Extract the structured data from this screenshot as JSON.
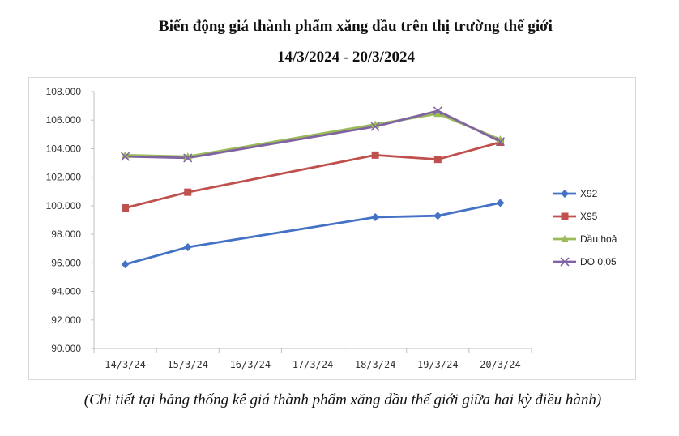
{
  "title_line1": "Biến động giá thành phẩm xăng dầu trên thị trường thế giới",
  "title_line2": "14/3/2024 - 20/3/2024",
  "caption": "(Chi tiết tại bảng thống kê giá thành phẩm xăng dầu thế giới giữa hai kỳ điều hành)",
  "chart_data": {
    "type": "line",
    "categories": [
      "14/3/24",
      "15/3/24",
      "16/3/24",
      "17/3/24",
      "18/3/24",
      "19/3/24",
      "20/3/24"
    ],
    "ylim": [
      90000,
      108000
    ],
    "yticks": [
      90000,
      92000,
      94000,
      96000,
      98000,
      100000,
      102000,
      104000,
      106000,
      108000
    ],
    "ytick_labels": [
      "90.000",
      "92.000",
      "94.000",
      "96.000",
      "98.000",
      "100.000",
      "102.000",
      "104.000",
      "106.000",
      "108.000"
    ],
    "legend_position": "right",
    "grid": false,
    "series": [
      {
        "name": "X92",
        "color": "#4472C4",
        "marker": "diamond",
        "values": [
          95900,
          97100,
          null,
          null,
          99200,
          99300,
          100200
        ]
      },
      {
        "name": "X95",
        "color": "#C0504D",
        "marker": "square",
        "values": [
          99850,
          100950,
          null,
          null,
          103550,
          103250,
          104450
        ]
      },
      {
        "name": "Dầu hoả",
        "color": "#9BBB59",
        "marker": "triangle",
        "values": [
          103550,
          103450,
          null,
          null,
          105700,
          106450,
          104650
        ]
      },
      {
        "name": "DO 0,05",
        "color": "#8064A2",
        "marker": "x",
        "values": [
          103450,
          103350,
          null,
          null,
          105550,
          106650,
          104500
        ]
      }
    ]
  }
}
